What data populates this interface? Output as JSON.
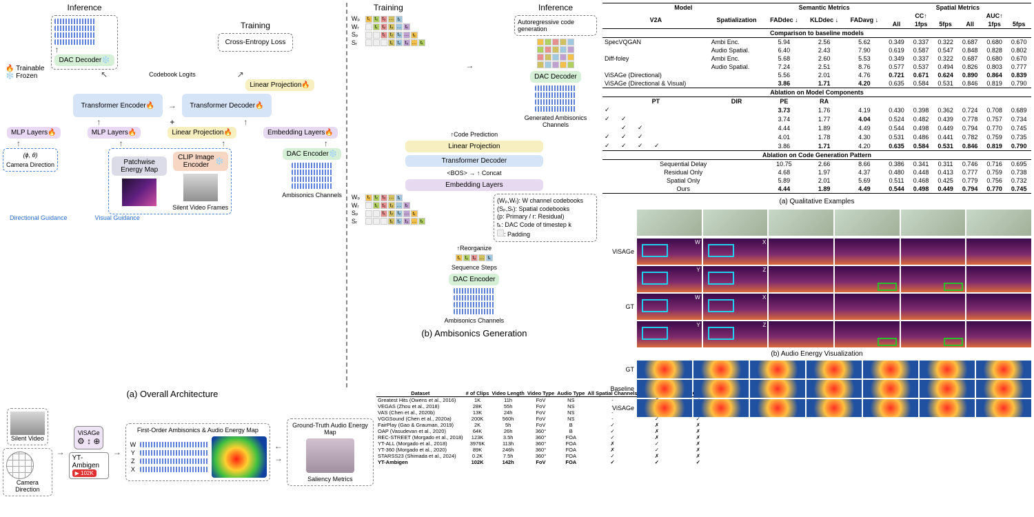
{
  "colors": {
    "mlp": "#e9d9f4",
    "encoder": "#d6e4f7",
    "clip": "#f7d6c4",
    "dac": "#d5f0d6",
    "linear": "#f7efc0",
    "embedding": "#e7d9f0",
    "codebox_border": "#bdbdbd",
    "codestrip": [
      "#f4c04a",
      "#b0d060",
      "#e69090",
      "#d0c060",
      "#a0c8e0",
      "#c0a0d0"
    ],
    "trainable": "#ff6a00",
    "frozen": "#6ac0ff"
  },
  "fonts": {
    "caption_pt": 13,
    "block_pt": 10,
    "small_pt": 9
  },
  "arch": {
    "legend": {
      "trainable": "Trainable",
      "frozen": "Frozen"
    },
    "inference": "Inference",
    "training": "Training",
    "cross_entropy": "Cross-Entropy Loss",
    "codebook_logits": "Codebook Logits",
    "dac_decoder": "DAC Decoder",
    "linear_projection": "Linear Projection",
    "transformer_encoder": "Transformer Encoder",
    "transformer_decoder": "Transformer Decoder",
    "mlp_layers": "MLP Layers",
    "embedding_layers": "Embedding Layers",
    "patchwise_energy": "Patchwise Energy Map",
    "clip_encoder": "CLIP Image Encoder",
    "dac_encoder": "DAC Encoder",
    "camera_direction": "Camera Direction",
    "camera_math": "(ϕ, θ)",
    "silent_frames": "Silent Video Frames",
    "ambisonics_channels": "Ambisonics Channels",
    "directional_guidance": "Directional Guidance",
    "visual_guidance": "Visual Guidance",
    "caption_a": "(a) Overall Architecture",
    "plus": "+",
    "bos": "<BOS>",
    "concat": "Concat",
    "reorganize": "Reorganize",
    "code_prediction": "Code Prediction",
    "sequence_steps": "Sequence Steps",
    "autoreg": "Autoregressive code generation",
    "generated_channels": "Generated Ambisonics Channels",
    "caption_b": "(b) Ambisonics Generation",
    "code_rows": [
      "Wₚ",
      "Wᵣ",
      "Sₚ",
      "Sᵣ"
    ],
    "code_labels": [
      "t₁",
      "t₂",
      "t₃",
      "…",
      "tₜ"
    ],
    "legend_box": {
      "l1": "(Wₚ,Wᵣ): W channel codebooks",
      "l2": "(Sₚ,Sᵣ): Spatial codebooks",
      "l3": "(p: Primary / r: Residual)",
      "l4": "tₖ: DAC Code of timestep k",
      "l5": ": Padding"
    }
  },
  "pipeline": {
    "silent_video": "Silent Video",
    "camera_direction": "Camera Direction",
    "visage": "ViSAGe",
    "yt_ambigen": "YT-Ambigen",
    "yt_count": "102K",
    "foa_title": "First-Order Ambisonics  &  Audio Energy Map",
    "channels": [
      "W",
      "Y",
      "Z",
      "X"
    ],
    "gt_title": "Ground-Truth Audio Energy Map",
    "saliency": "Saliency Metrics"
  },
  "datasets": {
    "headers": [
      "Dataset",
      "# of Clips",
      "Video Length",
      "Video Type",
      "Audio Type",
      "All Spatial Channels",
      "Open Domain",
      "Audio Generation"
    ],
    "rows": [
      [
        "Greatest Hits (Owens et al., 2016)",
        "1K",
        "11h",
        "FoV",
        "NS",
        "-",
        "✗",
        "✓"
      ],
      [
        "VEGAS (Zhou et al., 2018)",
        "28K",
        "55h",
        "FoV",
        "NS",
        "-",
        "✗",
        "✓"
      ],
      [
        "VAS (Chen et al., 2020b)",
        "13K",
        "24h",
        "FoV",
        "NS",
        "-",
        "✗",
        "✓"
      ],
      [
        "VGGSound (Chen et al., 2020a)",
        "200K",
        "560h",
        "FoV",
        "NS",
        "-",
        "✓",
        "✓"
      ],
      [
        "FairPlay (Gao & Grauman, 2019)",
        "2K",
        "5h",
        "FoV",
        "B",
        "✓",
        "✗",
        "✗"
      ],
      [
        "OAP (Vasudevan et al., 2020)",
        "64K",
        "26h",
        "360°",
        "B",
        "✓",
        "✗",
        "✗"
      ],
      [
        "REC-STREET (Morgado et al., 2018)",
        "123K",
        "3.5h",
        "360°",
        "FOA",
        "✓",
        "✗",
        "✗"
      ],
      [
        "YT-ALL (Morgado et al., 2018)",
        "3976K",
        "113h",
        "360°",
        "FOA",
        "✗",
        "✓",
        "✗"
      ],
      [
        "YT-360 (Morgado et al., 2020)",
        "89K",
        "246h",
        "360°",
        "FOA",
        "✗",
        "✓",
        "✗"
      ],
      [
        "STARSS23 (Shimada et al., 2024)",
        "0.2K",
        "7.5h",
        "360°",
        "FOA",
        "✓",
        "✗",
        "✗"
      ],
      [
        "YT-Ambigen",
        "102K",
        "142h",
        "FoV",
        "FOA",
        "✓",
        "✓",
        "✓"
      ]
    ]
  },
  "metrics": {
    "headers": {
      "model": "Model",
      "v2a": "V2A",
      "spat": "Spatialization",
      "semantic": "Semantic Metrics",
      "spatial": "Spatial Metrics",
      "fad_dec": "FADdec ↓",
      "kld_dec": "KLDdec ↓",
      "fad_avg": "FADavg ↓",
      "cc": "CC↑",
      "auc": "AUC↑",
      "all": "All",
      "1fps": "1fps",
      "5fps": "5fps"
    },
    "section1": "Comparison to baseline models",
    "section2": "Ablation on Model Components",
    "section3": "Ablation on Code Generation Pattern",
    "rows_baseline": [
      {
        "m": "SpecVQGAN",
        "s": "Ambi Enc.",
        "v": [
          "5.94",
          "2.56",
          "5.62",
          "0.349",
          "0.337",
          "0.322",
          "0.687",
          "0.680",
          "0.670"
        ]
      },
      {
        "m": "",
        "s": "Audio Spatial.",
        "v": [
          "6.40",
          "2.43",
          "7.90",
          "0.619",
          "0.587",
          "0.547",
          "0.848",
          "0.828",
          "0.802"
        ]
      },
      {
        "m": "Diff-foley",
        "s": "Ambi Enc.",
        "v": [
          "5.68",
          "2.60",
          "5.53",
          "0.349",
          "0.337",
          "0.322",
          "0.687",
          "0.680",
          "0.670"
        ]
      },
      {
        "m": "",
        "s": "Audio Spatial.",
        "v": [
          "7.24",
          "2.51",
          "8.76",
          "0.577",
          "0.537",
          "0.494",
          "0.826",
          "0.803",
          "0.777"
        ]
      },
      {
        "m": "ViSAGe (Directional)",
        "s": "",
        "v": [
          "5.56",
          "2.01",
          "4.76",
          "0.721",
          "0.671",
          "0.624",
          "0.890",
          "0.864",
          "0.839"
        ],
        "boldcols": [
          3,
          4,
          5,
          6,
          7,
          8
        ]
      },
      {
        "m": "ViSAGe (Directional & Visual)",
        "s": "",
        "v": [
          "3.86",
          "1.71",
          "4.20",
          "0.635",
          "0.584",
          "0.531",
          "0.846",
          "0.819",
          "0.790"
        ],
        "boldcols": [
          0,
          1,
          2
        ]
      }
    ],
    "abl_headers": [
      "PT",
      "DIR",
      "PE",
      "RA"
    ],
    "rows_ablation": [
      {
        "c": [
          "✓",
          "",
          "",
          ""
        ],
        "v": [
          "3.73",
          "1.76",
          "4.19",
          "0.430",
          "0.398",
          "0.362",
          "0.724",
          "0.708",
          "0.689"
        ],
        "boldcols": [
          0
        ]
      },
      {
        "c": [
          "✓",
          "✓",
          "",
          ""
        ],
        "v": [
          "3.74",
          "1.77",
          "4.04",
          "0.524",
          "0.482",
          "0.439",
          "0.778",
          "0.757",
          "0.734"
        ],
        "boldcols": [
          2
        ]
      },
      {
        "c": [
          "",
          "✓",
          "✓",
          ""
        ],
        "v": [
          "4.44",
          "1.89",
          "4.49",
          "0.544",
          "0.498",
          "0.449",
          "0.794",
          "0.770",
          "0.745"
        ]
      },
      {
        "c": [
          "✓",
          "✓",
          "✓",
          ""
        ],
        "v": [
          "4.01",
          "1.78",
          "4.30",
          "0.531",
          "0.486",
          "0.441",
          "0.782",
          "0.759",
          "0.735"
        ]
      },
      {
        "c": [
          "✓",
          "✓",
          "✓",
          "✓"
        ],
        "v": [
          "3.86",
          "1.71",
          "4.20",
          "0.635",
          "0.584",
          "0.531",
          "0.846",
          "0.819",
          "0.790"
        ],
        "boldcols": [
          1,
          3,
          4,
          5,
          6,
          7,
          8
        ]
      }
    ],
    "rows_pattern": [
      {
        "m": "Sequential Delay",
        "v": [
          "10.75",
          "2.66",
          "8.66",
          "0.386",
          "0.341",
          "0.311",
          "0.746",
          "0.716",
          "0.695"
        ]
      },
      {
        "m": "Residual Only",
        "v": [
          "4.68",
          "1.97",
          "4.37",
          "0.480",
          "0.448",
          "0.413",
          "0.777",
          "0.759",
          "0.738"
        ]
      },
      {
        "m": "Spatial Only",
        "v": [
          "5.89",
          "2.01",
          "5.69",
          "0.511",
          "0.468",
          "0.425",
          "0.779",
          "0.756",
          "0.732"
        ]
      },
      {
        "m": "Ours",
        "v": [
          "4.44",
          "1.89",
          "4.49",
          "0.544",
          "0.498",
          "0.449",
          "0.794",
          "0.770",
          "0.745"
        ],
        "boldcols": [
          0,
          1,
          2,
          3,
          4,
          5,
          6,
          7,
          8
        ]
      }
    ]
  },
  "qual": {
    "title_a": "(a) Qualitative Examples",
    "title_b": "(b) Audio Energy Visualization",
    "rowlabels": [
      "ViSAGe",
      "",
      "GT",
      ""
    ],
    "wxyz": [
      "W",
      "X",
      "Y",
      "Z"
    ],
    "energy_rows": [
      "GT",
      "Baseline",
      "ViSAGe"
    ]
  }
}
